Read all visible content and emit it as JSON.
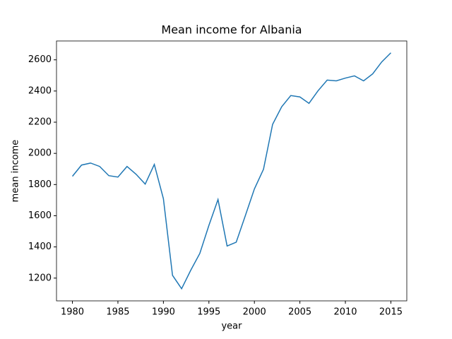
{
  "chart_data": {
    "type": "line",
    "title": "Mean income for Albania",
    "xlabel": "year",
    "ylabel": "mean income",
    "x": [
      1980,
      1981,
      1982,
      1983,
      1984,
      1985,
      1986,
      1987,
      1988,
      1989,
      1990,
      1991,
      1992,
      1993,
      1994,
      1995,
      1996,
      1997,
      1998,
      1999,
      2000,
      2001,
      2002,
      2003,
      2004,
      2005,
      2006,
      2007,
      2008,
      2009,
      2010,
      2011,
      2012,
      2013,
      2014,
      2015
    ],
    "series": [
      {
        "name": "mean income",
        "color": "#1f77b4",
        "values": [
          1853,
          1925,
          1938,
          1916,
          1857,
          1848,
          1916,
          1866,
          1803,
          1929,
          1709,
          1218,
          1132,
          1250,
          1358,
          1538,
          1704,
          1406,
          1430,
          1600,
          1772,
          1898,
          2186,
          2299,
          2371,
          2362,
          2321,
          2402,
          2470,
          2465,
          2483,
          2497,
          2465,
          2510,
          2587,
          2645
        ]
      }
    ],
    "xlim": [
      1978.25,
      2016.75
    ],
    "xticks": [
      1980,
      1985,
      1990,
      1995,
      2000,
      2005,
      2010,
      2015
    ],
    "ylim": [
      1054,
      2721
    ],
    "yticks": [
      1200,
      1400,
      1600,
      1800,
      2000,
      2200,
      2400,
      2600
    ],
    "grid": false
  }
}
